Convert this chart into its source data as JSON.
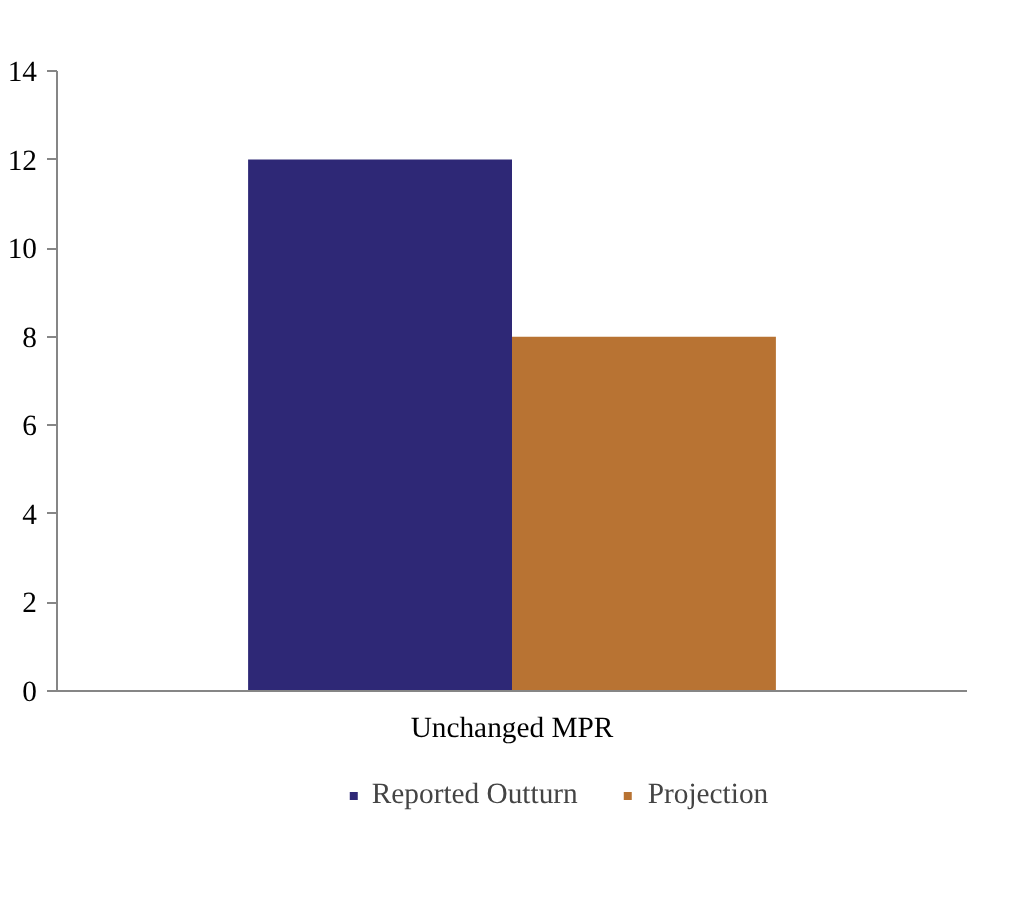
{
  "chart_data": {
    "type": "bar",
    "categories": [
      "Unchanged MPR"
    ],
    "series": [
      {
        "name": "Reported Outturn",
        "color": "#2e2876",
        "values": [
          12
        ]
      },
      {
        "name": "Projection",
        "color": "#b87333",
        "values": [
          8
        ]
      }
    ],
    "ylim": [
      0,
      14
    ],
    "yticks": [
      0,
      2,
      4,
      6,
      8,
      10,
      12,
      14
    ],
    "grid": false,
    "legend": "bottom"
  }
}
